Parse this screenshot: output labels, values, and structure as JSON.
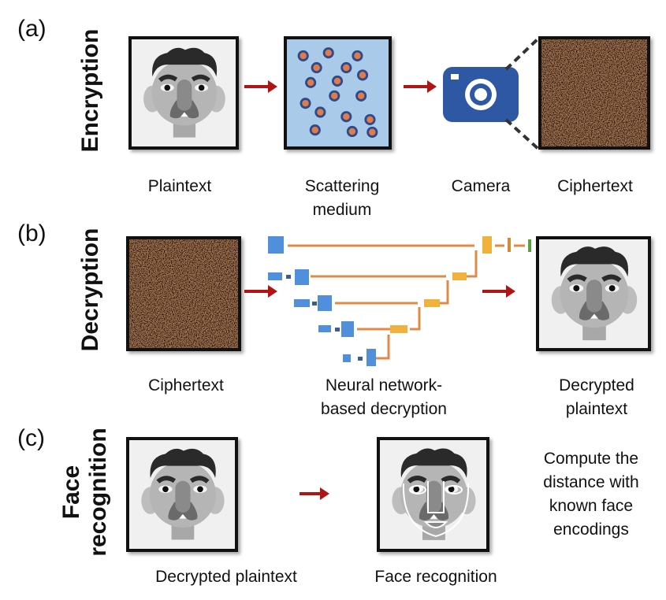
{
  "panels": {
    "a": {
      "label": "(a)",
      "title": "Encryption",
      "captions": {
        "plaintext": "Plaintext",
        "scattering_1": "Scattering",
        "scattering_2": "medium",
        "camera": "Camera",
        "ciphertext": "Ciphertext"
      }
    },
    "b": {
      "label": "(b)",
      "title": "Decryption",
      "captions": {
        "ciphertext": "Ciphertext",
        "network_1": "Neural network-",
        "network_2": "based decryption",
        "decrypted_1": "Decrypted",
        "decrypted_2": "plaintext"
      }
    },
    "c": {
      "label": "(c)",
      "title_1": "Face",
      "title_2": "recognition",
      "captions": {
        "decrypted": "Decrypted plaintext",
        "recognition": "Face recognition"
      },
      "note": [
        "Compute the",
        "distance with",
        "known face",
        "encodings"
      ]
    }
  },
  "colors": {
    "arrow": "#b01515",
    "medium": "#a9cbe9",
    "particle": "#e07b4a",
    "camera": "#2e57a4",
    "encoder": "#4f8fdc",
    "decoder": "#f0b23c",
    "skip": "#e08a4a",
    "output": "#5aa040"
  }
}
